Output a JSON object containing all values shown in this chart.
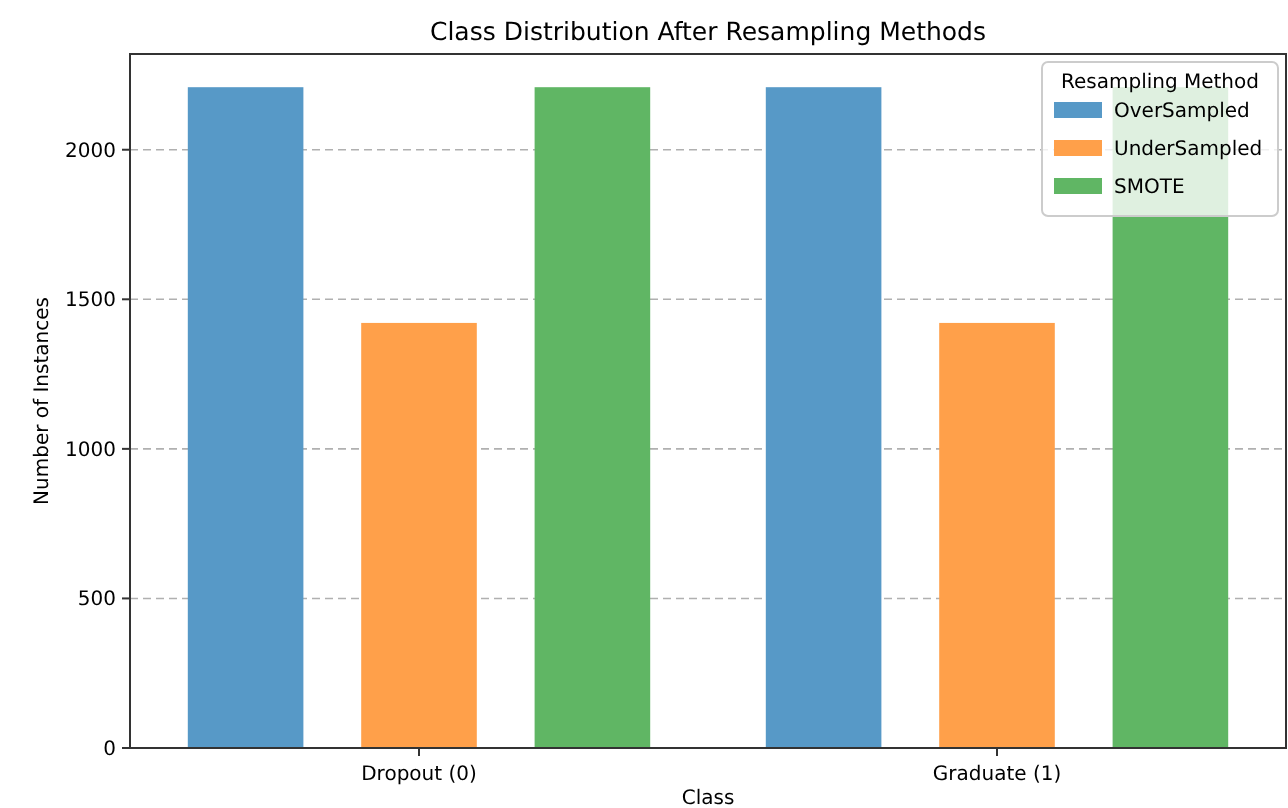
{
  "chart_data": {
    "type": "bar",
    "title": "Class Distribution After Resampling Methods",
    "xlabel": "Class",
    "ylabel": "Number of Instances",
    "legend_title": "Resampling Method",
    "categories": [
      "Dropout (0)",
      "Graduate (1)"
    ],
    "series": [
      {
        "name": "OverSampled",
        "color": "#5799c7",
        "values": [
          2209,
          2209
        ]
      },
      {
        "name": "UnderSampled",
        "color": "#ffa04a",
        "values": [
          1421,
          1421
        ]
      },
      {
        "name": "SMOTE",
        "color": "#60b664",
        "values": [
          2209,
          2209
        ]
      }
    ],
    "ylim": [
      0,
      2320
    ],
    "yticks": [
      0,
      500,
      1000,
      1500,
      2000
    ],
    "grid": "y",
    "legend": "top right"
  }
}
